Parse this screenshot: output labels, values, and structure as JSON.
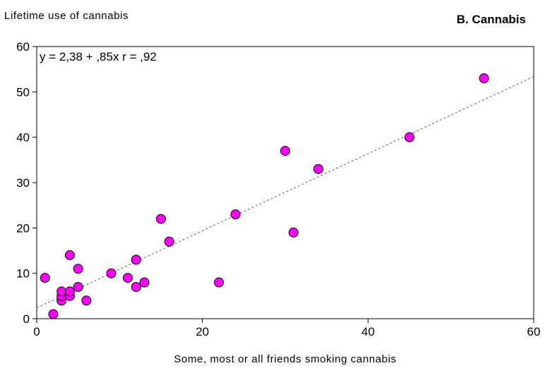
{
  "chart_data": {
    "type": "scatter",
    "ylabel": "Lifetime use of cannabis",
    "panel_title": "B. Cannabis",
    "xlabel": "Some, most or all friends smoking cannabis",
    "annotation": "y = 2,38 + ,85x  r = ,92",
    "xlim": [
      0,
      60
    ],
    "ylim": [
      0,
      60
    ],
    "x_ticks": [
      0,
      20,
      40,
      60
    ],
    "y_ticks": [
      0,
      10,
      20,
      30,
      40,
      50,
      60
    ],
    "regression": {
      "intercept": 2.38,
      "slope": 0.85,
      "style": "dotted"
    },
    "grid": false,
    "marker_color": "#ff00ff",
    "points": [
      {
        "x": 1,
        "y": 9
      },
      {
        "x": 2,
        "y": 1
      },
      {
        "x": 3,
        "y": 4
      },
      {
        "x": 3,
        "y": 5
      },
      {
        "x": 3,
        "y": 6
      },
      {
        "x": 4,
        "y": 5
      },
      {
        "x": 4,
        "y": 6
      },
      {
        "x": 4,
        "y": 14
      },
      {
        "x": 5,
        "y": 7
      },
      {
        "x": 5,
        "y": 11
      },
      {
        "x": 6,
        "y": 4
      },
      {
        "x": 9,
        "y": 10
      },
      {
        "x": 11,
        "y": 9
      },
      {
        "x": 12,
        "y": 7
      },
      {
        "x": 12,
        "y": 13
      },
      {
        "x": 13,
        "y": 8
      },
      {
        "x": 15,
        "y": 22
      },
      {
        "x": 16,
        "y": 17
      },
      {
        "x": 22,
        "y": 8
      },
      {
        "x": 24,
        "y": 23
      },
      {
        "x": 30,
        "y": 37
      },
      {
        "x": 31,
        "y": 19
      },
      {
        "x": 34,
        "y": 33
      },
      {
        "x": 45,
        "y": 40
      },
      {
        "x": 54,
        "y": 53
      }
    ]
  }
}
